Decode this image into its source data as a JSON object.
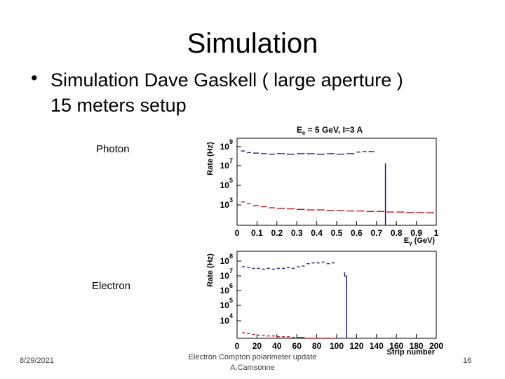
{
  "slide": {
    "title": "Simulation",
    "bullet_1": "Simulation Dave Gaskell ( large aperture )",
    "bullet_2": "15 meters setup",
    "photon_label": "Photon",
    "electron_label": "Electron"
  },
  "footer": {
    "date": "8/29/2021",
    "center_line_1": "Electron Compton polarimeter update",
    "center_line_2": "A.Camsonne",
    "page": "16"
  },
  "chart_data": [
    {
      "type": "line",
      "title": "E_e = 5 GeV, I=3 A",
      "xlabel": "E_γ (GeV)",
      "ylabel": "Rate (Hz)",
      "xlim": [
        0,
        1
      ],
      "x_ticks": [
        "0",
        "0.1",
        "0.2",
        "0.3",
        "0.4",
        "0.5",
        "0.6",
        "0.7",
        "0.8",
        "0.9",
        "1"
      ],
      "y_ticks": [
        {
          "base": "10",
          "exp": "9"
        },
        {
          "base": "10",
          "exp": "7"
        },
        {
          "base": "10",
          "exp": "5"
        },
        {
          "base": "10",
          "exp": "3"
        }
      ],
      "ylog": true,
      "ylim_log10": [
        1.7,
        9.9
      ],
      "series": [
        {
          "color": "#1a237e",
          "style": "dashed-step",
          "x": [
            0.02,
            0.05,
            0.08,
            0.12,
            0.16,
            0.2,
            0.25,
            0.3,
            0.35,
            0.4,
            0.45,
            0.5,
            0.55,
            0.6,
            0.63,
            0.66,
            0.7
          ],
          "y_log10": [
            8.7,
            8.55,
            8.5,
            8.45,
            8.4,
            8.45,
            8.4,
            8.45,
            8.45,
            8.4,
            8.45,
            8.4,
            8.45,
            8.6,
            8.65,
            8.65,
            8.65
          ]
        },
        {
          "color": "#1a237e",
          "style": "solid",
          "x": [
            0.745,
            0.745
          ],
          "y_log10": [
            7.55,
            1.7
          ]
        },
        {
          "color": "#b71c1c",
          "style": "dashed-step",
          "x": [
            0.02,
            0.05,
            0.08,
            0.12,
            0.16,
            0.2,
            0.25,
            0.3,
            0.35,
            0.4,
            0.45,
            0.5,
            0.55,
            0.6,
            0.65,
            0.7,
            0.75,
            0.8,
            0.85,
            0.9,
            0.95,
            1.0
          ],
          "y_log10": [
            3.9,
            3.75,
            3.55,
            3.45,
            3.35,
            3.3,
            3.25,
            3.2,
            3.15,
            3.15,
            3.1,
            3.1,
            3.05,
            3.05,
            3.0,
            3.0,
            2.95,
            2.95,
            2.9,
            2.9,
            2.9,
            2.9
          ]
        }
      ]
    },
    {
      "type": "line",
      "xlabel": "Strip number",
      "ylabel": "Rate (Hz)",
      "xlim": [
        0,
        200
      ],
      "x_ticks": [
        "0",
        "20",
        "40",
        "60",
        "80",
        "100",
        "120",
        "140",
        "160",
        "180",
        "200"
      ],
      "y_ticks": [
        {
          "base": "10",
          "exp": "8"
        },
        {
          "base": "10",
          "exp": "7"
        },
        {
          "base": "10",
          "exp": "6"
        },
        {
          "base": "10",
          "exp": "5"
        },
        {
          "base": "10",
          "exp": "4"
        }
      ],
      "ylog": true,
      "ylim_log10": [
        3.0,
        8.6
      ],
      "series": [
        {
          "color": "#1a237e",
          "style": "dashed-step",
          "x": [
            5,
            10,
            15,
            20,
            25,
            30,
            35,
            40,
            45,
            50,
            55,
            60,
            65,
            70,
            75,
            80,
            85,
            90,
            95,
            100
          ],
          "y_log10": [
            7.6,
            7.55,
            7.5,
            7.5,
            7.45,
            7.5,
            7.45,
            7.5,
            7.5,
            7.55,
            7.5,
            7.6,
            7.65,
            7.8,
            7.85,
            7.85,
            7.9,
            7.8,
            7.85,
            7.9
          ]
        },
        {
          "color": "#1a237e",
          "style": "solid",
          "x": [
            108,
            108,
            110,
            110
          ],
          "y_log10": [
            7.25,
            7.0,
            7.0,
            3.0
          ]
        },
        {
          "color": "#b71c1c",
          "style": "dashed-step",
          "x": [
            5,
            10,
            15,
            20,
            25,
            30,
            35,
            40,
            45,
            50,
            55,
            60,
            70,
            80,
            90,
            100
          ],
          "y_log10": [
            3.35,
            3.3,
            3.25,
            3.2,
            3.2,
            3.15,
            3.15,
            3.1,
            3.1,
            3.1,
            3.05,
            3.05,
            3.0,
            3.0,
            3.0,
            3.0
          ]
        }
      ]
    }
  ]
}
